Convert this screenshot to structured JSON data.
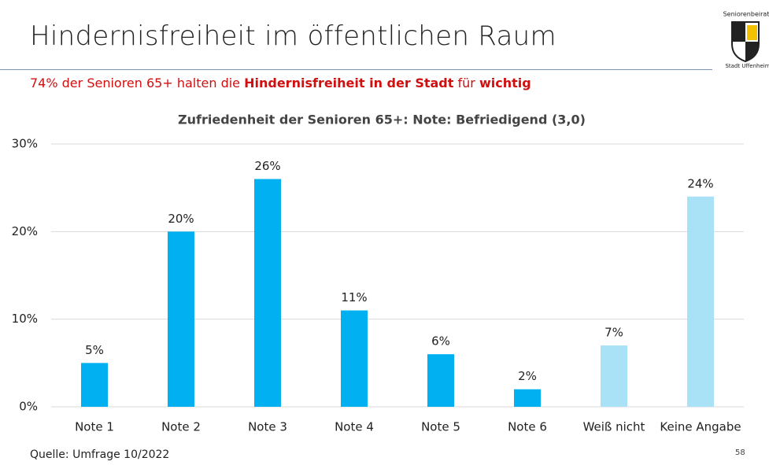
{
  "slide": {
    "title": "Hindernisfreiheit im öffentlichen Raum",
    "subtitle_parts": [
      "74% der Senioren 65+ halten die",
      "Hindernisfreiheit in der Stadt",
      "für",
      "wichtig"
    ],
    "source": "Quelle: Umfrage 10/2022",
    "page_number": "58",
    "logo_top": "Seniorenbeirat",
    "logo_bottom": "Stadt Uffenheim"
  },
  "chart_data": {
    "type": "bar",
    "title": "Zufriedenheit der Senioren 65+: Note: Befriedigend (3,0)",
    "categories": [
      "Note 1",
      "Note 2",
      "Note 3",
      "Note 4",
      "Note 5",
      "Note 6",
      "Weiß nicht",
      "Keine Angabe"
    ],
    "values": [
      5,
      20,
      26,
      11,
      6,
      2,
      7,
      24
    ],
    "value_labels": [
      "5%",
      "20%",
      "26%",
      "11%",
      "6%",
      "2%",
      "7%",
      "24%"
    ],
    "colors": [
      "#00b0f0",
      "#00b0f0",
      "#00b0f0",
      "#00b0f0",
      "#00b0f0",
      "#00b0f0",
      "#a9e1f7",
      "#a9e1f7"
    ],
    "ylim": [
      0,
      30
    ],
    "yticks": [
      {
        "value": 0,
        "label": "0%"
      },
      {
        "value": 10,
        "label": "10%"
      },
      {
        "value": 20,
        "label": "20%"
      },
      {
        "value": 30,
        "label": "30%"
      }
    ],
    "grid": true
  }
}
